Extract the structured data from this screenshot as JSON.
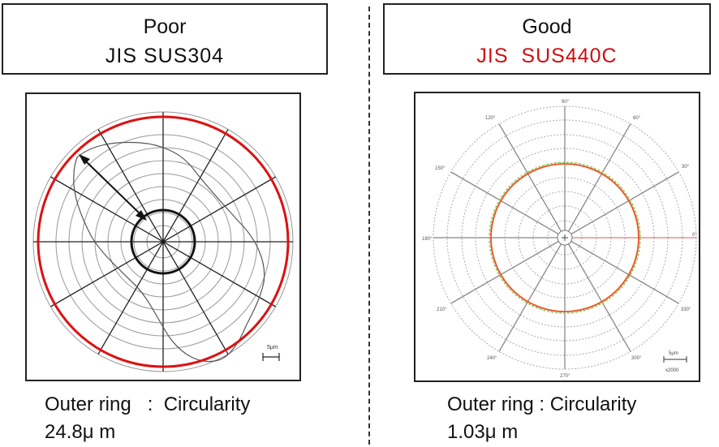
{
  "left_panel": {
    "rating": "Poor",
    "material": "JIS SUS304",
    "scale_label": "5μm",
    "caption_line1": "Outer ring   :  Circularity",
    "caption_line2": "24.8μ m"
  },
  "right_panel": {
    "rating": "Good",
    "material": "JIS  SUS440C",
    "angles": [
      "90°",
      "60°",
      "30°",
      "0°",
      "330°",
      "300°",
      "270°",
      "240°",
      "210°",
      "180°",
      "150°",
      "120°"
    ],
    "scale_label": "5μm",
    "magnification": "x2000",
    "caption_line1": "Outer ring : Circularity",
    "caption_line2": "1.03μ m"
  },
  "colors": {
    "highlight": "#dd1111",
    "material_good": "#cc1111"
  }
}
